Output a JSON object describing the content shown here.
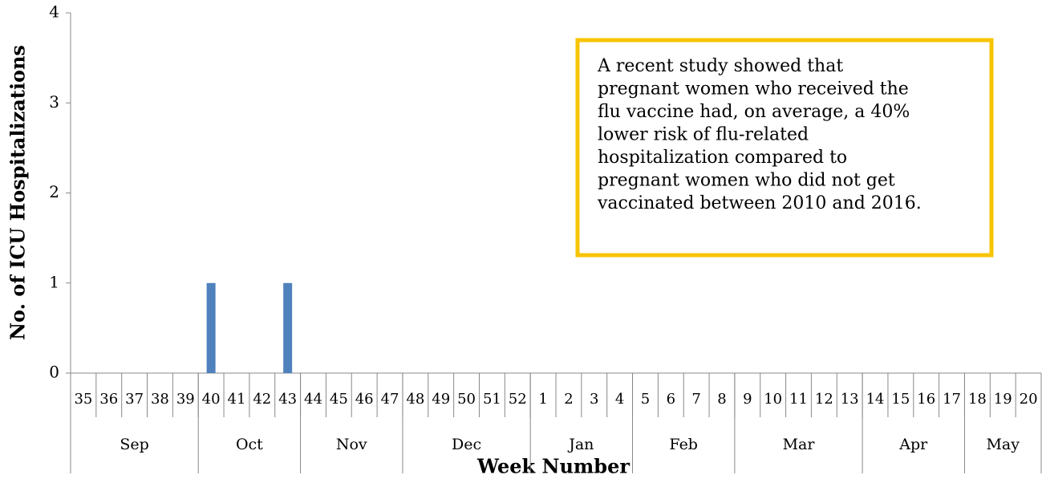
{
  "chart_data": {
    "type": "bar",
    "ylabel": "No. of ICU Hospitalizations",
    "xlabel": "Week Number",
    "categories": [
      "35",
      "36",
      "37",
      "38",
      "39",
      "40",
      "41",
      "42",
      "43",
      "44",
      "45",
      "46",
      "47",
      "48",
      "49",
      "50",
      "51",
      "52",
      "1",
      "2",
      "3",
      "4",
      "5",
      "6",
      "7",
      "8",
      "9",
      "10",
      "11",
      "12",
      "13",
      "14",
      "15",
      "16",
      "17",
      "18",
      "19",
      "20"
    ],
    "values": [
      0,
      0,
      0,
      0,
      0,
      1,
      0,
      0,
      1,
      0,
      0,
      0,
      0,
      0,
      0,
      0,
      0,
      0,
      0,
      0,
      0,
      0,
      0,
      0,
      0,
      0,
      0,
      0,
      0,
      0,
      0,
      0,
      0,
      0,
      0,
      0,
      0,
      0
    ],
    "groups": [
      {
        "label": "Sep",
        "count": 5
      },
      {
        "label": "Oct",
        "count": 4
      },
      {
        "label": "Nov",
        "count": 4
      },
      {
        "label": "Dec",
        "count": 5
      },
      {
        "label": "Jan",
        "count": 4
      },
      {
        "label": "Feb",
        "count": 4
      },
      {
        "label": "Mar",
        "count": 5
      },
      {
        "label": "Apr",
        "count": 4
      },
      {
        "label": "May",
        "count": 3
      }
    ],
    "color": "#4f81bd",
    "ylim": [
      0,
      4
    ],
    "yticks": [
      0,
      1,
      2,
      3,
      4
    ],
    "annotation": [
      "A recent study showed that",
      "pregnant women who received the",
      "flu vaccine had, on average, a 40%",
      "lower risk of flu-related",
      "hospitalization compared to",
      "pregnant women who did not get",
      "vaccinated between 2010 and 2016."
    ]
  }
}
